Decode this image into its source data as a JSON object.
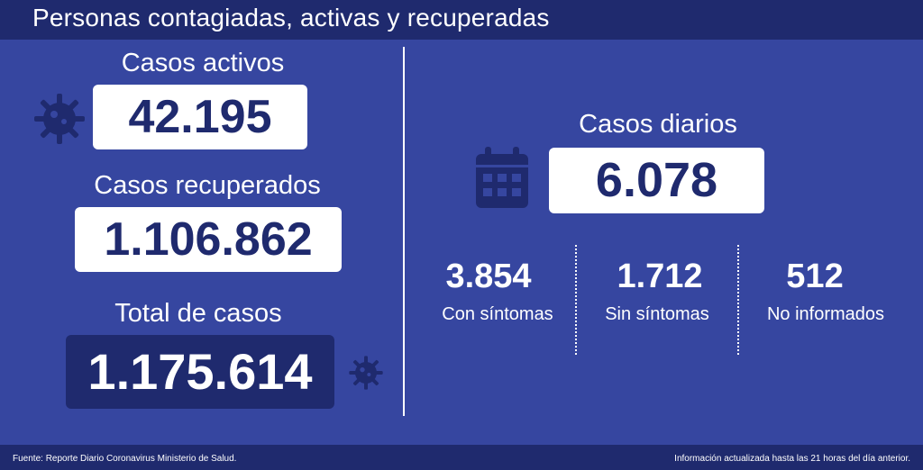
{
  "header": {
    "title": "Personas contagiadas, activas y recuperadas"
  },
  "left": {
    "activos": {
      "label": "Casos activos",
      "value": "42.195"
    },
    "recuperados": {
      "label": "Casos recuperados",
      "value": "1.106.862"
    },
    "total": {
      "label": "Total de casos",
      "value": "1.175.614"
    }
  },
  "right": {
    "diarios": {
      "label": "Casos diarios",
      "value": "6.078"
    },
    "breakdown": [
      {
        "value": "3.854",
        "label": "Con síntomas"
      },
      {
        "value": "1.712",
        "label": "Sin síntomas"
      },
      {
        "value": "512",
        "label": "No informados"
      }
    ]
  },
  "footer": {
    "source": "Fuente: Reporte Diario Coronavirus Ministerio de Salud.",
    "updated": "Información actualizada hasta las 21 horas  del día anterior."
  },
  "colors": {
    "background": "#3646a0",
    "dark": "#1f2a6e",
    "white": "#ffffff"
  },
  "icons": {
    "virus": "virus-icon",
    "calendar": "calendar-icon"
  }
}
